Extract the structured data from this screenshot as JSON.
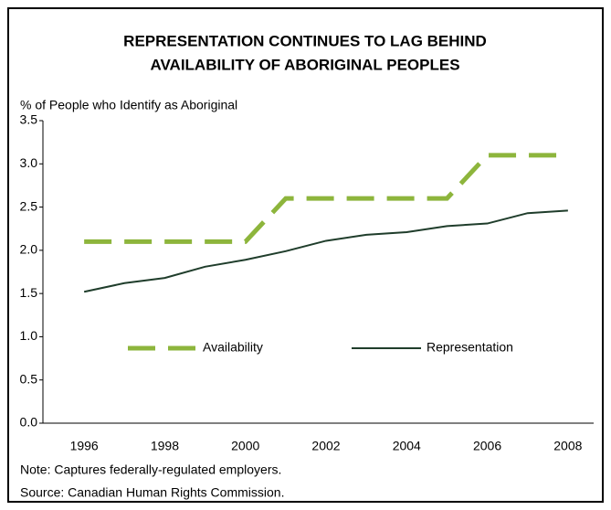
{
  "chart_data": {
    "type": "line",
    "title": [
      "REPRESENTATION CONTINUES TO LAG BEHIND",
      "AVAILABILITY OF ABORIGINAL PEOPLES"
    ],
    "y_label": "% of People who Identify as Aboriginal",
    "x": [
      1996,
      1997,
      1998,
      1999,
      2000,
      2001,
      2002,
      2003,
      2004,
      2005,
      2006,
      2007,
      2008
    ],
    "series": [
      {
        "name": "Availability",
        "color": "#8db53c",
        "dashed": true,
        "values": [
          2.1,
          2.1,
          2.1,
          2.1,
          2.1,
          2.6,
          2.6,
          2.6,
          2.6,
          2.6,
          3.1,
          3.1,
          3.1
        ]
      },
      {
        "name": "Representation",
        "color": "#1f3d2b",
        "dashed": false,
        "values": [
          1.52,
          1.62,
          1.68,
          1.81,
          1.89,
          1.99,
          2.11,
          2.18,
          2.21,
          2.28,
          2.31,
          2.43,
          2.46
        ]
      }
    ],
    "xlim": [
      1995,
      2009
    ],
    "xticks": [
      1996,
      1998,
      2000,
      2002,
      2004,
      2006,
      2008
    ],
    "ylim": [
      0,
      3.5
    ],
    "yticks": [
      {
        "value": 0,
        "label": "0.0"
      },
      0.5,
      {
        "value": 1,
        "label": "1.0"
      },
      1.5,
      {
        "value": 2,
        "label": "2.0"
      },
      2.5,
      {
        "value": 3,
        "label": "3.0"
      },
      3.5
    ],
    "notes": [
      "Note: Captures federally-regulated employers.",
      "Source: Canadian Human Rights Commission."
    ]
  }
}
